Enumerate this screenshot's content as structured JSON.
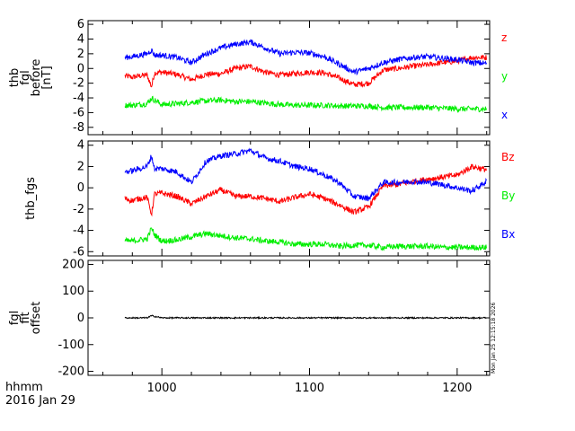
{
  "footer": {
    "line1": "hhmm",
    "line2": "2016 Jan 29"
  },
  "timestamp": "Mon Jan 25 12:15:18 2026",
  "chart_data": [
    {
      "type": "line",
      "ylabel": [
        "thb",
        "fgl",
        "before",
        "[nT]"
      ],
      "ylim": [
        -9,
        6.5
      ],
      "yticks": [
        6,
        4,
        2,
        0,
        -2,
        -4,
        -6,
        -8
      ],
      "xlim": [
        950,
        1222
      ],
      "legend_placement": "right",
      "series": [
        {
          "name": "z",
          "color": "#ff0000",
          "x": [
            975,
            980,
            985,
            990,
            993,
            995,
            1000,
            1010,
            1020,
            1030,
            1040,
            1050,
            1060,
            1070,
            1080,
            1090,
            1100,
            1110,
            1120,
            1130,
            1140,
            1150,
            1160,
            1170,
            1180,
            1190,
            1200,
            1210,
            1220
          ],
          "y": [
            -1.0,
            -1.2,
            -1.0,
            -0.9,
            -2.5,
            -0.6,
            -0.5,
            -0.8,
            -1.5,
            -0.8,
            -0.7,
            0.0,
            0.3,
            -0.5,
            -0.9,
            -0.7,
            -0.5,
            -0.6,
            -1.3,
            -2.2,
            -2.0,
            -0.2,
            0.0,
            0.3,
            0.5,
            0.8,
            1.0,
            1.5,
            1.5
          ]
        },
        {
          "name": "y",
          "color": "#00ee00",
          "x": [
            975,
            980,
            985,
            990,
            993,
            995,
            1000,
            1010,
            1020,
            1030,
            1040,
            1050,
            1060,
            1070,
            1080,
            1090,
            1100,
            1110,
            1120,
            1130,
            1140,
            1150,
            1160,
            1170,
            1180,
            1190,
            1200,
            1210,
            1220
          ],
          "y": [
            -5.0,
            -5.0,
            -4.9,
            -4.8,
            -4.0,
            -4.3,
            -4.9,
            -4.8,
            -4.6,
            -4.4,
            -4.3,
            -4.5,
            -4.5,
            -4.7,
            -4.9,
            -5.0,
            -5.0,
            -5.0,
            -5.1,
            -5.1,
            -5.1,
            -5.3,
            -5.3,
            -5.3,
            -5.3,
            -5.4,
            -5.5,
            -5.5,
            -5.5
          ]
        },
        {
          "name": "x",
          "color": "#0000ff",
          "x": [
            975,
            980,
            985,
            990,
            993,
            995,
            1000,
            1010,
            1020,
            1030,
            1040,
            1050,
            1060,
            1070,
            1080,
            1090,
            1100,
            1110,
            1120,
            1130,
            1140,
            1150,
            1160,
            1170,
            1180,
            1190,
            1200,
            1210,
            1220
          ],
          "y": [
            1.5,
            1.6,
            1.8,
            2.0,
            2.5,
            1.8,
            1.8,
            1.5,
            0.8,
            2.0,
            2.8,
            3.3,
            3.6,
            2.8,
            2.0,
            2.2,
            2.1,
            1.6,
            0.6,
            -0.5,
            0.0,
            0.8,
            1.2,
            1.5,
            1.6,
            1.4,
            1.2,
            0.8,
            0.7
          ]
        }
      ]
    },
    {
      "type": "line",
      "ylabel": [
        "thb_fgs"
      ],
      "ylim": [
        -6.4,
        4.4
      ],
      "yticks": [
        4,
        2,
        0,
        -2,
        -4,
        -6
      ],
      "xlim": [
        950,
        1222
      ],
      "legend_placement": "right",
      "series": [
        {
          "name": "Bz",
          "color": "#ff0000",
          "x": [
            975,
            980,
            985,
            990,
            993,
            995,
            1000,
            1010,
            1020,
            1030,
            1040,
            1050,
            1060,
            1070,
            1080,
            1090,
            1100,
            1110,
            1120,
            1130,
            1140,
            1150,
            1160,
            1170,
            1180,
            1190,
            1200,
            1210,
            1220
          ],
          "y": [
            -1.0,
            -1.2,
            -1.0,
            -0.9,
            -2.5,
            -0.6,
            -0.5,
            -0.8,
            -1.5,
            -0.8,
            -0.2,
            -0.8,
            -0.8,
            -1.0,
            -1.3,
            -0.9,
            -0.6,
            -1.0,
            -1.6,
            -2.3,
            -1.8,
            0.2,
            0.3,
            0.6,
            0.8,
            1.0,
            1.2,
            2.0,
            1.7
          ]
        },
        {
          "name": "By",
          "color": "#00ee00",
          "x": [
            975,
            980,
            985,
            990,
            993,
            995,
            1000,
            1010,
            1020,
            1030,
            1040,
            1050,
            1060,
            1070,
            1080,
            1090,
            1100,
            1110,
            1120,
            1130,
            1140,
            1150,
            1160,
            1170,
            1180,
            1190,
            1200,
            1210,
            1220
          ],
          "y": [
            -5.0,
            -5.0,
            -4.9,
            -4.8,
            -3.8,
            -4.4,
            -5.0,
            -4.9,
            -4.6,
            -4.3,
            -4.5,
            -4.7,
            -4.8,
            -5.0,
            -5.1,
            -5.3,
            -5.3,
            -5.3,
            -5.5,
            -5.4,
            -5.4,
            -5.6,
            -5.5,
            -5.5,
            -5.5,
            -5.6,
            -5.6,
            -5.6,
            -5.6
          ]
        },
        {
          "name": "Bx",
          "color": "#0000ff",
          "x": [
            975,
            980,
            985,
            990,
            993,
            995,
            1000,
            1010,
            1020,
            1030,
            1040,
            1050,
            1060,
            1070,
            1080,
            1090,
            1100,
            1110,
            1120,
            1130,
            1140,
            1150,
            1160,
            1170,
            1180,
            1190,
            1200,
            1210,
            1220
          ],
          "y": [
            1.5,
            1.6,
            1.8,
            2.0,
            3.0,
            1.8,
            1.8,
            1.5,
            0.5,
            2.5,
            3.0,
            3.2,
            3.5,
            2.8,
            2.5,
            2.0,
            1.8,
            1.2,
            0.5,
            -0.8,
            -1.0,
            0.5,
            0.5,
            0.6,
            0.5,
            0.3,
            0.0,
            -0.3,
            0.6
          ]
        }
      ]
    },
    {
      "type": "line",
      "ylabel": [
        "fgl",
        "fit",
        "offset"
      ],
      "ylim": [
        -215,
        215
      ],
      "yticks": [
        200,
        100,
        0,
        -100,
        -200
      ],
      "xlim": [
        950,
        1222
      ],
      "xticks": [
        1000,
        1100,
        1200
      ],
      "series": [
        {
          "color": "#000000",
          "x": [
            975,
            990,
            993,
            1000,
            1050,
            1100,
            1150,
            1200,
            1220
          ],
          "y": [
            0,
            0,
            8,
            0,
            0,
            0,
            0,
            0,
            0
          ]
        }
      ]
    }
  ]
}
